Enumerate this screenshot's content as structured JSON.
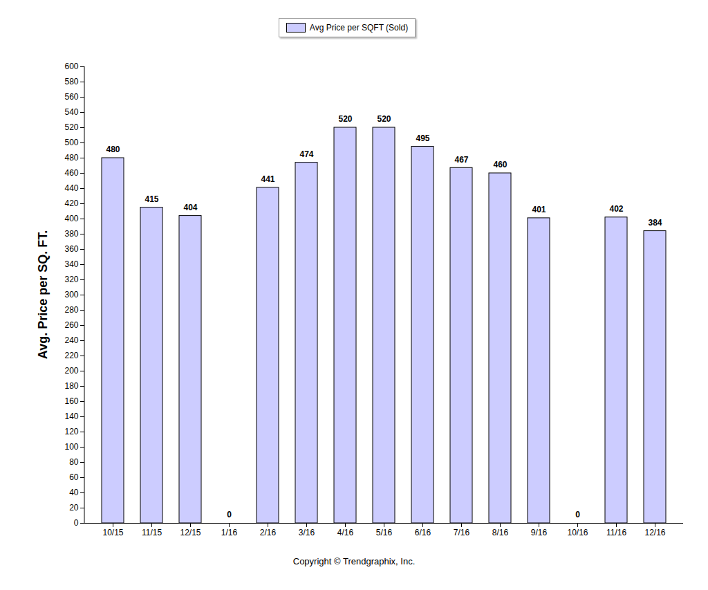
{
  "chart_data": {
    "type": "bar",
    "y_label": "Avg. Price per SQ. FT.",
    "caption": "Copyright © Trendgraphix, Inc.",
    "categories": [
      "10/15",
      "11/15",
      "12/15",
      "1/16",
      "2/16",
      "3/16",
      "4/16",
      "5/16",
      "6/16",
      "7/16",
      "8/16",
      "9/16",
      "10/16",
      "11/16",
      "12/16"
    ],
    "series": [
      {
        "name": "Avg Price per SQFT (Sold)",
        "color": "#ccccff",
        "values": [
          480,
          415,
          404,
          0,
          441,
          474,
          520,
          520,
          495,
          467,
          460,
          401,
          0,
          402,
          384
        ]
      }
    ],
    "ylim": [
      0,
      600
    ],
    "yticks": [
      0,
      20,
      40,
      60,
      80,
      100,
      120,
      140,
      160,
      180,
      200,
      220,
      240,
      260,
      280,
      300,
      320,
      340,
      360,
      380,
      400,
      420,
      440,
      460,
      480,
      500,
      520,
      540,
      560,
      580,
      600
    ],
    "grid": false,
    "legend": "top",
    "data_labels": true
  }
}
